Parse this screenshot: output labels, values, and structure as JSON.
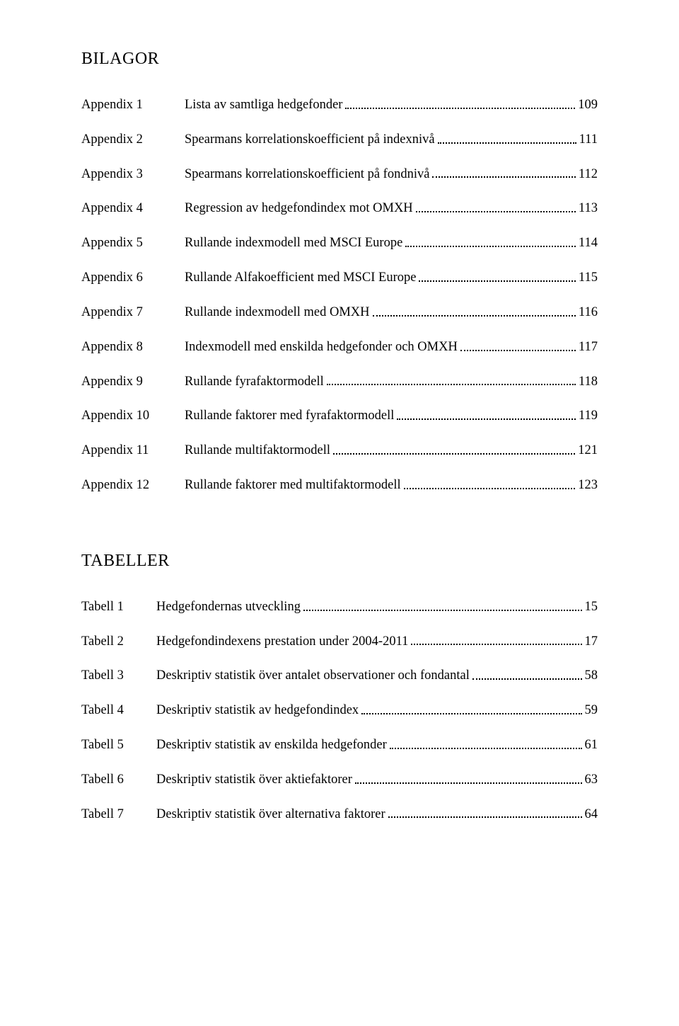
{
  "bilagor": {
    "heading": "BILAGOR",
    "items": [
      {
        "label": "Appendix 1",
        "title": "Lista av samtliga hedgefonder",
        "page": "109"
      },
      {
        "label": "Appendix 2",
        "title": "Spearmans korrelationskoefficient på indexnivå",
        "page": "111"
      },
      {
        "label": "Appendix 3",
        "title": "Spearmans korrelationskoefficient på fondnivå",
        "page": "112"
      },
      {
        "label": "Appendix 4",
        "title": "Regression av hedgefondindex mot OMXH",
        "page": "113"
      },
      {
        "label": "Appendix 5",
        "title": "Rullande indexmodell med MSCI Europe",
        "page": "114"
      },
      {
        "label": "Appendix 6",
        "title": "Rullande Alfakoefficient med MSCI Europe",
        "page": "115"
      },
      {
        "label": "Appendix 7",
        "title": "Rullande indexmodell med OMXH",
        "page": "116"
      },
      {
        "label": "Appendix 8",
        "title": "Indexmodell med enskilda hedgefonder och OMXH",
        "page": "117"
      },
      {
        "label": "Appendix 9",
        "title": "Rullande fyrafaktormodell",
        "page": "118"
      },
      {
        "label": "Appendix 10",
        "title": "Rullande faktorer med fyrafaktormodell",
        "page": "119"
      },
      {
        "label": "Appendix 11",
        "title": "Rullande multifaktormodell",
        "page": "121"
      },
      {
        "label": "Appendix 12",
        "title": "Rullande faktorer med multifaktormodell",
        "page": "123"
      }
    ]
  },
  "tabeller": {
    "heading": "TABELLER",
    "items": [
      {
        "label": "Tabell 1",
        "title": "Hedgefondernas utveckling",
        "page": "15"
      },
      {
        "label": "Tabell 2",
        "title": "Hedgefondindexens prestation under 2004-2011",
        "page": "17"
      },
      {
        "label": "Tabell 3",
        "title": "Deskriptiv statistik över antalet observationer och fondantal",
        "page": "58"
      },
      {
        "label": "Tabell 4",
        "title": "Deskriptiv statistik av hedgefondindex",
        "page": "59"
      },
      {
        "label": "Tabell 5",
        "title": "Deskriptiv statistik av enskilda hedgefonder",
        "page": "61"
      },
      {
        "label": "Tabell 6",
        "title": "Deskriptiv statistik över aktiefaktorer",
        "page": "63"
      },
      {
        "label": "Tabell 7",
        "title": "Deskriptiv statistik över alternativa faktorer",
        "page": "64"
      }
    ]
  }
}
